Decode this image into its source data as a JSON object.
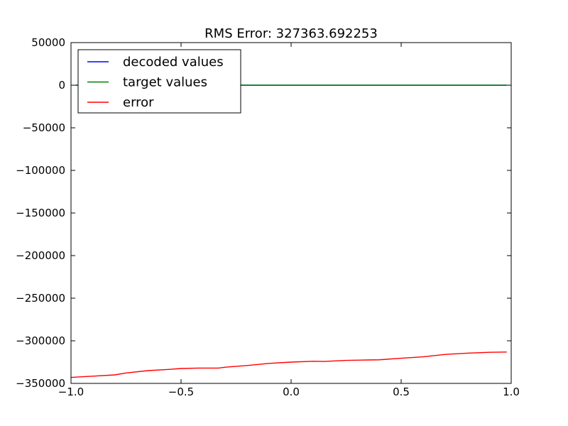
{
  "chart_data": {
    "type": "line",
    "title": "RMS Error: 327363.692253",
    "xlabel": "",
    "ylabel": "",
    "xlim": [
      -1.0,
      1.0
    ],
    "ylim": [
      -350000,
      50000
    ],
    "grid": false,
    "legend_position": "top-left",
    "x_ticks": [
      -1.0,
      -0.5,
      0.0,
      0.5,
      1.0
    ],
    "x_tick_labels": [
      "−1.0",
      "−0.5",
      "0.0",
      "0.5",
      "1.0"
    ],
    "y_ticks": [
      50000,
      0,
      -50000,
      -100000,
      -150000,
      -200000,
      -250000,
      -300000,
      -350000
    ],
    "y_tick_labels": [
      "50000",
      "0",
      "−50000",
      "−100000",
      "−150000",
      "−200000",
      "−250000",
      "−300000",
      "−350000"
    ],
    "series": [
      {
        "name": "decoded values",
        "color": "#0000ff",
        "x": [
          -0.98,
          0.98
        ],
        "y": [
          0,
          0
        ]
      },
      {
        "name": "target values",
        "color": "#008000",
        "x": [
          -0.98,
          0.98
        ],
        "y": [
          0,
          0
        ]
      },
      {
        "name": "error",
        "color": "#ff0000",
        "x": [
          -1.0,
          -0.9,
          -0.8,
          -0.75,
          -0.65,
          -0.55,
          -0.5,
          -0.42,
          -0.33,
          -0.3,
          -0.2,
          -0.1,
          0.0,
          0.1,
          0.15,
          0.25,
          0.35,
          0.4,
          0.5,
          0.6,
          0.7,
          0.8,
          0.9,
          0.98
        ],
        "y": [
          -343000,
          -341500,
          -340000,
          -337800,
          -335000,
          -333500,
          -332500,
          -332000,
          -332000,
          -331000,
          -329000,
          -326500,
          -325000,
          -324000,
          -324200,
          -323000,
          -322500,
          -322300,
          -320500,
          -318800,
          -316000,
          -314500,
          -313500,
          -313200
        ]
      }
    ]
  }
}
